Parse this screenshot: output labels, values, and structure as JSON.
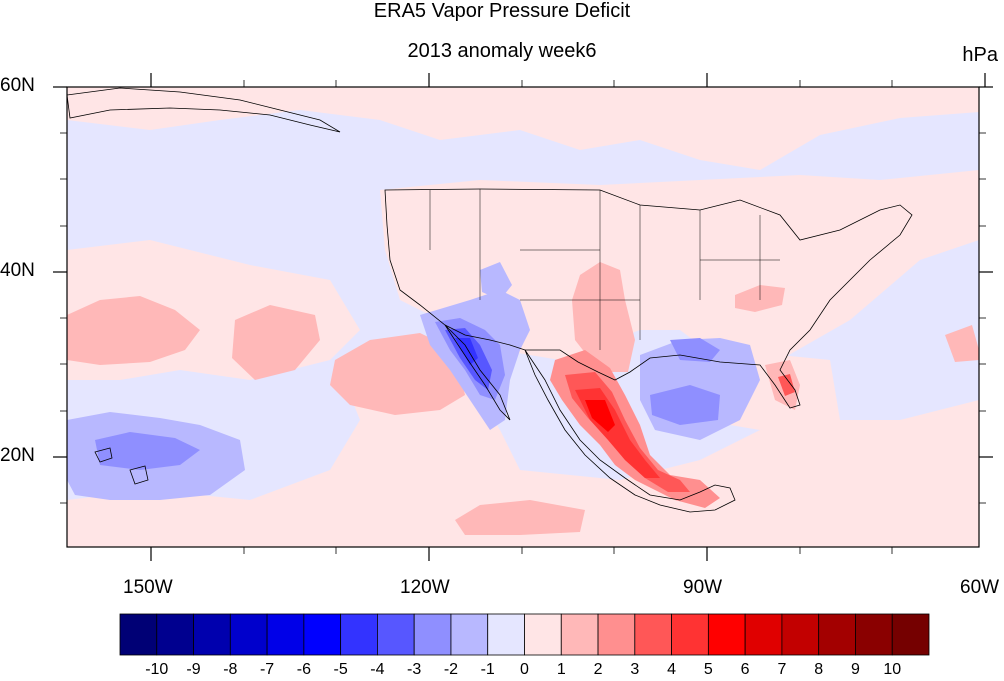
{
  "title": "ERA5 Vapor Pressure Deficit",
  "subtitle": "2013 anomaly week6",
  "units": "hPa",
  "map": {
    "lon_ticks": [
      "150W",
      "120W",
      "90W",
      "60W"
    ],
    "lat_ticks": [
      "60N",
      "40N",
      "20N"
    ],
    "region": "North America / Eastern Pacific",
    "projection": "cylindrical equidistant"
  },
  "colorbar": {
    "labels": [
      "-10",
      "-9",
      "-8",
      "-7",
      "-6",
      "-5",
      "-4",
      "-3",
      "-2",
      "-1",
      "0",
      "1",
      "2",
      "3",
      "4",
      "5",
      "6",
      "7",
      "8",
      "9",
      "10"
    ],
    "colors": [
      "#000075",
      "#00008f",
      "#0000ae",
      "#0000cc",
      "#0000e8",
      "#0000ff",
      "#3333ff",
      "#5757ff",
      "#8f8fff",
      "#b8b8ff",
      "#e5e6ff",
      "#ffe5e6",
      "#ffb8b8",
      "#ff8f8f",
      "#ff5757",
      "#ff3333",
      "#ff0000",
      "#e00000",
      "#c20000",
      "#a30000",
      "#8a0000",
      "#750000"
    ]
  },
  "colors": {
    "background_neutral_neg": "#e5e6ff",
    "background_neutral_pos": "#ffe5e6",
    "strong_positive": "#ff0000",
    "strong_negative": "#3333ff"
  }
}
